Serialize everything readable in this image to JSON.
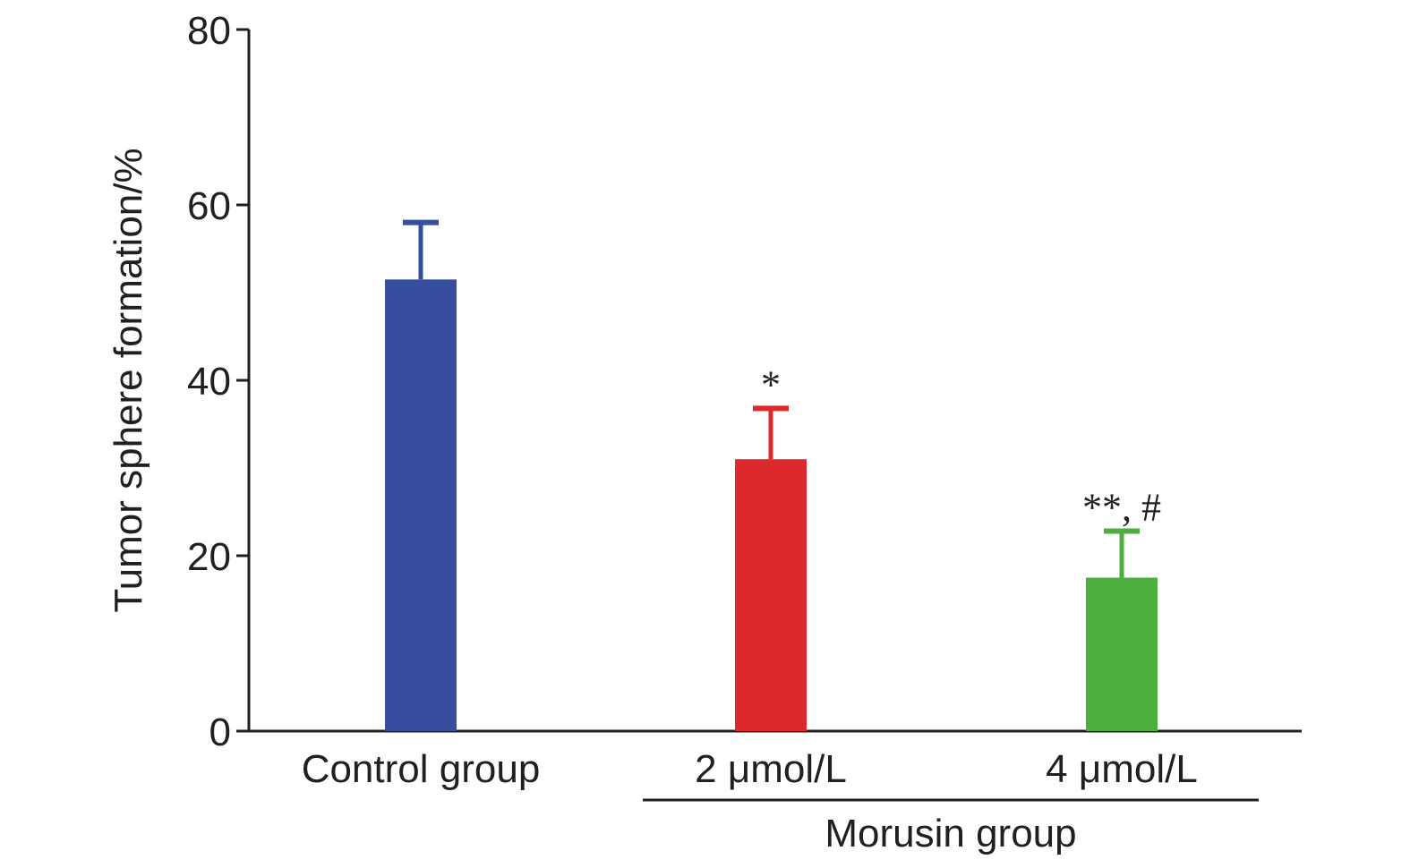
{
  "chart_data": {
    "type": "bar",
    "title": "",
    "ylabel": "Tumor sphere formation/%",
    "xlabel": "",
    "ylim": [
      0,
      80
    ],
    "yticks": [
      0,
      20,
      40,
      60,
      80
    ],
    "categories": [
      "Control group",
      "2 μmol/L",
      "4 μmol/L"
    ],
    "values": [
      51.5,
      31.0,
      17.5
    ],
    "errors": [
      6.5,
      5.8,
      5.3
    ],
    "colors": [
      "#354f9e",
      "#dc2a2c",
      "#4caf3e"
    ],
    "annotations": [
      "",
      "*",
      "**, #"
    ],
    "group_label": "Morusin group",
    "group_categories": [
      "2 μmol/L",
      "4 μmol/L"
    ],
    "grid": false,
    "legend": "none"
  }
}
